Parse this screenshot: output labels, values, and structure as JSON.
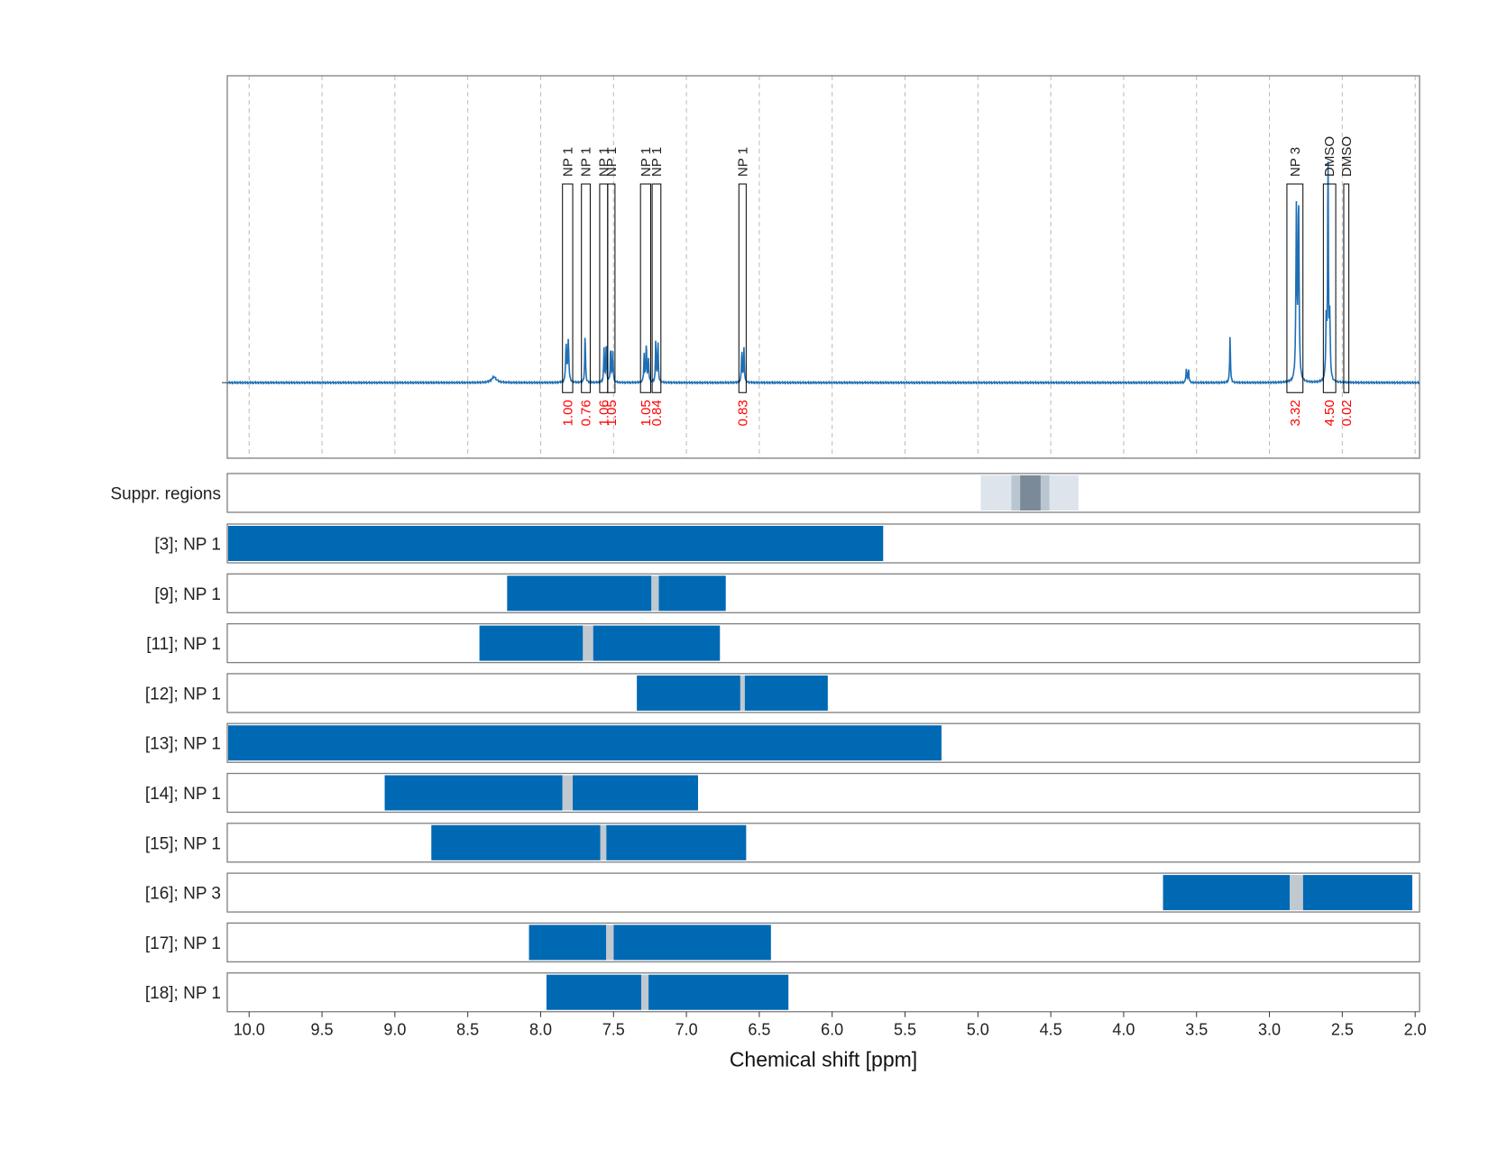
{
  "chart_data": {
    "type": "line",
    "xlabel": "Chemical shift [ppm]",
    "x_axis": {
      "range": [
        10.15,
        1.97
      ],
      "reversed": true,
      "ticks": [
        "10.0",
        "9.5",
        "9.0",
        "8.5",
        "8.0",
        "7.5",
        "7.0",
        "6.5",
        "6.0",
        "5.5",
        "5.0",
        "4.5",
        "4.0",
        "3.5",
        "3.0",
        "2.5",
        "2.0"
      ],
      "tick_values": [
        10.0,
        9.5,
        9.0,
        8.5,
        8.0,
        7.5,
        7.0,
        6.5,
        6.0,
        5.5,
        5.0,
        4.5,
        4.0,
        3.5,
        3.0,
        2.5,
        2.0
      ],
      "grid": true
    },
    "spectrum": {
      "color": "#1f6fb5",
      "baseline": 0,
      "y_range": [
        -0.16,
        0.65
      ],
      "peaks": [
        {
          "shift": 8.32,
          "height": 0.012,
          "width": 0.02
        },
        {
          "shift": 7.825,
          "height": 0.08,
          "width": 0.004
        },
        {
          "shift": 7.81,
          "height": 0.09,
          "width": 0.004
        },
        {
          "shift": 7.695,
          "height": 0.105,
          "width": 0.003
        },
        {
          "shift": 7.565,
          "height": 0.07,
          "width": 0.003
        },
        {
          "shift": 7.55,
          "height": 0.085,
          "width": 0.003
        },
        {
          "shift": 7.52,
          "height": 0.075,
          "width": 0.003
        },
        {
          "shift": 7.505,
          "height": 0.065,
          "width": 0.003
        },
        {
          "shift": 7.29,
          "height": 0.06,
          "width": 0.003
        },
        {
          "shift": 7.275,
          "height": 0.085,
          "width": 0.003
        },
        {
          "shift": 7.26,
          "height": 0.05,
          "width": 0.003
        },
        {
          "shift": 7.21,
          "height": 0.088,
          "width": 0.003
        },
        {
          "shift": 7.195,
          "height": 0.085,
          "width": 0.003
        },
        {
          "shift": 6.62,
          "height": 0.07,
          "width": 0.003
        },
        {
          "shift": 6.605,
          "height": 0.075,
          "width": 0.003
        },
        {
          "shift": 3.57,
          "height": 0.03,
          "width": 0.003
        },
        {
          "shift": 3.555,
          "height": 0.03,
          "width": 0.003
        },
        {
          "shift": 3.27,
          "height": 0.102,
          "width": 0.003
        },
        {
          "shift": 2.815,
          "height": 0.36,
          "width": 0.004
        },
        {
          "shift": 2.8,
          "height": 0.38,
          "width": 0.004
        },
        {
          "shift": 2.61,
          "height": 0.13,
          "width": 0.004
        },
        {
          "shift": 2.598,
          "height": 0.48,
          "width": 0.003
        },
        {
          "shift": 2.586,
          "height": 0.13,
          "width": 0.004
        }
      ]
    },
    "peak_annotations": [
      {
        "label": "NP 1",
        "integral": "1.00",
        "x0": 7.85,
        "x1": 7.78
      },
      {
        "label": "NP 1",
        "integral": "0.76",
        "x0": 7.72,
        "x1": 7.66
      },
      {
        "label": "NP 1",
        "integral": "1.06",
        "x0": 7.595,
        "x1": 7.54
      },
      {
        "label": "NP 1",
        "integral": "1.05",
        "x0": 7.54,
        "x1": 7.49
      },
      {
        "label": "NP 1",
        "integral": "1.05",
        "x0": 7.315,
        "x1": 7.245
      },
      {
        "label": "NP 1",
        "integral": "0.84",
        "x0": 7.235,
        "x1": 7.175
      },
      {
        "label": "NP 1",
        "integral": "0.83",
        "x0": 6.64,
        "x1": 6.59
      },
      {
        "label": "NP 3",
        "integral": "3.32",
        "x0": 2.88,
        "x1": 2.77
      },
      {
        "label": "DMSO",
        "integral": "4.50",
        "x0": 2.63,
        "x1": 2.545
      },
      {
        "label": "DMSO",
        "integral": "0.02",
        "x0": 2.49,
        "x1": 2.455
      }
    ],
    "suppr_regions": {
      "label": "Suppr. regions",
      "bands": [
        {
          "x0": 4.98,
          "x1": 4.31,
          "color": "#dde4eb"
        },
        {
          "x0": 4.77,
          "x1": 4.51,
          "color": "#b9c5d0"
        },
        {
          "x0": 4.71,
          "x1": 4.57,
          "color": "#7a8a98"
        }
      ]
    },
    "rows": [
      {
        "label": "[3]; NP 1",
        "segments": [
          [
            10.15,
            5.65
          ]
        ]
      },
      {
        "label": "[9]; NP 1",
        "segments": [
          [
            8.23,
            7.24
          ],
          [
            7.19,
            6.73
          ]
        ],
        "gap": [
          7.24,
          7.19
        ]
      },
      {
        "label": "[11]; NP 1",
        "segments": [
          [
            8.42,
            7.71
          ],
          [
            7.64,
            6.77
          ]
        ],
        "gap": [
          7.71,
          7.64
        ]
      },
      {
        "label": "[12]; NP 1",
        "segments": [
          [
            7.34,
            6.63
          ],
          [
            6.6,
            6.03
          ]
        ],
        "gap": [
          6.63,
          6.6
        ]
      },
      {
        "label": "[13]; NP 1",
        "segments": [
          [
            10.15,
            5.25
          ]
        ]
      },
      {
        "label": "[14]; NP 1",
        "segments": [
          [
            9.07,
            7.85
          ],
          [
            7.78,
            6.92
          ]
        ],
        "gap": [
          7.85,
          7.78
        ]
      },
      {
        "label": "[15]; NP 1",
        "segments": [
          [
            8.75,
            7.59
          ],
          [
            7.55,
            6.59
          ]
        ],
        "gap": [
          7.59,
          7.55
        ]
      },
      {
        "label": "[16]; NP 3",
        "segments": [
          [
            3.73,
            2.86
          ],
          [
            2.77,
            2.02
          ]
        ],
        "gap": [
          2.86,
          2.77
        ]
      },
      {
        "label": "[17]; NP 1",
        "segments": [
          [
            8.08,
            7.55
          ],
          [
            7.5,
            6.42
          ]
        ],
        "gap": [
          7.55,
          7.5
        ]
      },
      {
        "label": "[18]; NP 1",
        "segments": [
          [
            7.96,
            7.31
          ],
          [
            7.26,
            6.3
          ]
        ],
        "gap": [
          7.31,
          7.26
        ]
      }
    ],
    "colors": {
      "bar": "#0069b4",
      "gap": "#c0c8d0",
      "frame": "#7f7f7f",
      "grid": "#bbbbbb",
      "box": "#000000",
      "integral": "#ff0000"
    }
  }
}
